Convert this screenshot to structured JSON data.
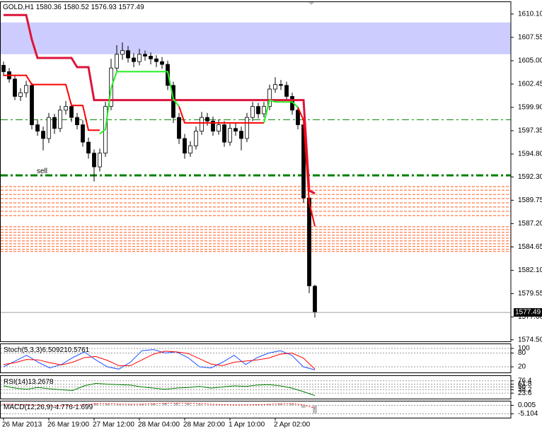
{
  "chart_data": [
    {
      "type": "candlestick",
      "title": "GOLD,H1",
      "categories": [
        "26 Mar 2013",
        null,
        null,
        null,
        null,
        null,
        null,
        null,
        "26 Mar 19:00",
        null,
        null,
        null,
        null,
        null,
        null,
        null,
        "27 Mar 12:00",
        null,
        null,
        null,
        null,
        null,
        null,
        null,
        "28 Mar 04:00",
        null,
        null,
        null,
        null,
        null,
        null,
        null,
        "28 Mar 20:00",
        null,
        null,
        null,
        null,
        null,
        null,
        null,
        "1 Apr 10:00",
        null,
        null,
        null,
        null,
        null,
        null,
        null,
        "2 Apr 02:00",
        null,
        null,
        null,
        null,
        null,
        null,
        null
      ],
      "open": [
        1604.5,
        1603.8,
        1603.0,
        1601.1,
        1601.5,
        1602.3,
        1598.0,
        1597.3,
        1596.5,
        1598.8,
        1597.6,
        1599.6,
        1600.0,
        1598.8,
        1598.0,
        1596.1,
        1594.9,
        1593.4,
        1594.9,
        1600.0,
        1604.2,
        1605.7,
        1606.1,
        1605.3,
        1604.9,
        1605.7,
        1605.5,
        1605.2,
        1604.9,
        1604.6,
        1602.3,
        1598.8,
        1596.5,
        1594.9,
        1595.7,
        1597.3,
        1598.8,
        1598.4,
        1597.3,
        1598.0,
        1596.1,
        1597.6,
        1597.3,
        1596.5,
        1598.8,
        1600.0,
        1599.2,
        1600.0,
        1601.9,
        1602.4,
        1602.3,
        1601.1,
        1599.6,
        1598.0,
        1590.0,
        1580.36
      ],
      "high": [
        1604.9,
        1604.2,
        1603.4,
        1602.0,
        1602.8,
        1602.6,
        1598.6,
        1597.8,
        1599.3,
        1599.2,
        1600.1,
        1600.6,
        1600.4,
        1599.3,
        1598.5,
        1596.6,
        1595.3,
        1595.4,
        1600.5,
        1605.2,
        1606.7,
        1607.0,
        1606.6,
        1605.8,
        1606.3,
        1606.1,
        1605.9,
        1605.6,
        1605.4,
        1605.0,
        1602.7,
        1599.3,
        1597.0,
        1596.2,
        1597.8,
        1599.4,
        1599.3,
        1598.9,
        1598.6,
        1598.4,
        1598.1,
        1598.2,
        1597.8,
        1599.3,
        1600.5,
        1600.4,
        1600.5,
        1602.4,
        1603.2,
        1602.9,
        1602.7,
        1601.5,
        1600.0,
        1598.3,
        1590.3,
        1580.52
      ],
      "low": [
        1603.3,
        1602.6,
        1600.7,
        1600.6,
        1601.0,
        1597.5,
        1596.8,
        1595.2,
        1596.0,
        1597.0,
        1597.2,
        1599.1,
        1598.3,
        1597.5,
        1595.6,
        1594.3,
        1591.8,
        1592.9,
        1594.5,
        1599.6,
        1603.8,
        1605.1,
        1604.8,
        1604.3,
        1604.5,
        1605.0,
        1604.6,
        1604.3,
        1604.1,
        1601.8,
        1598.2,
        1595.9,
        1594.3,
        1594.5,
        1595.3,
        1596.9,
        1597.9,
        1596.8,
        1596.9,
        1595.6,
        1595.7,
        1596.8,
        1595.2,
        1596.1,
        1598.4,
        1598.7,
        1598.8,
        1599.6,
        1601.5,
        1601.8,
        1600.6,
        1599.1,
        1597.5,
        1589.5,
        1579.6,
        1576.93
      ],
      "close": [
        1603.8,
        1603.0,
        1601.1,
        1601.5,
        1602.3,
        1598.0,
        1597.3,
        1596.5,
        1598.8,
        1597.6,
        1599.6,
        1600.0,
        1598.8,
        1598.0,
        1596.1,
        1594.9,
        1593.4,
        1594.9,
        1600.0,
        1604.2,
        1605.7,
        1606.1,
        1605.3,
        1604.9,
        1605.7,
        1605.5,
        1605.2,
        1604.9,
        1604.6,
        1602.3,
        1598.8,
        1596.5,
        1594.9,
        1595.7,
        1597.3,
        1598.8,
        1598.4,
        1597.3,
        1598.0,
        1596.1,
        1597.6,
        1597.3,
        1596.5,
        1598.8,
        1600.0,
        1599.2,
        1600.0,
        1601.9,
        1602.4,
        1602.3,
        1601.1,
        1599.6,
        1598.0,
        1590.0,
        1580.4,
        1577.49
      ],
      "up_color": "#ffffff",
      "down_color": "#000000",
      "series": [
        {
          "color": "#dc143c",
          "width": 3,
          "values": [
            1610.0,
            1610.0,
            1610.0,
            1610.0,
            1610.0,
            1607.3,
            1605.3,
            1605.3,
            1605.3,
            1605.3,
            1605.3,
            1605.3,
            1605.3,
            1604.3,
            1604.3,
            1604.3,
            1600.7,
            1600.7,
            1600.7,
            1600.7,
            1600.7,
            1600.7,
            1600.7,
            1600.7,
            1600.7,
            1600.7,
            1600.7,
            1600.7,
            1600.7,
            1600.7,
            1600.7,
            1600.7,
            1600.7,
            1600.7,
            1600.7,
            1600.7,
            1600.7,
            1600.7,
            1600.7,
            1600.7,
            1600.7,
            1600.7,
            1600.7,
            1600.7,
            1600.7,
            1600.7,
            1600.7,
            1600.7,
            1600.7,
            1600.7,
            1600.7,
            1600.7,
            1600.7,
            1600.7,
            1590.8,
            1590.5
          ]
        },
        {
          "color": "#ff0000",
          "width": 2,
          "values": [
            1603.4,
            1603.4,
            1603.4,
            1603.4,
            1603.4,
            1602.4,
            1602.4,
            1602.4,
            1602.4,
            1602.4,
            1602.4,
            1602.4,
            1600.1,
            1600.1,
            1600.1,
            1597.4,
            1597.4,
            1597.4,
            null,
            null,
            null,
            null,
            null,
            null,
            null,
            null,
            null,
            null,
            null,
            null,
            null,
            1600.0,
            1598.2,
            1598.2,
            1598.2,
            1598.2,
            1598.2,
            1598.2,
            1598.2,
            1598.2,
            1598.2,
            1598.2,
            1598.2,
            1598.2,
            1598.2,
            1598.2,
            1598.2,
            null,
            null,
            null,
            null,
            null,
            1599.9,
            1598.5,
            1589.5,
            1586.9
          ]
        },
        {
          "color": "#22ee22",
          "width": 2,
          "values": [
            null,
            null,
            null,
            null,
            null,
            null,
            null,
            null,
            null,
            null,
            null,
            null,
            null,
            null,
            null,
            null,
            null,
            1597.0,
            1597.5,
            1602.0,
            1603.8,
            1603.8,
            1603.8,
            1603.8,
            1603.8,
            1603.8,
            1603.8,
            1603.8,
            1603.8,
            1603.8,
            1600.8,
            1600.0,
            null,
            null,
            null,
            null,
            null,
            null,
            null,
            null,
            null,
            null,
            null,
            null,
            null,
            null,
            1598.2,
            1600.7,
            1600.5,
            1600.5,
            1600.5,
            1600.5,
            1599.9,
            null,
            null,
            null
          ]
        }
      ],
      "hlines": [
        {
          "value": 1598.55,
          "width": 1
        },
        {
          "value": 1592.47,
          "width": 3,
          "label": "sell"
        }
      ],
      "hlines_color": "#008000",
      "levels": [
        1591.24,
        1590.85,
        1590.39,
        1589.93,
        1589.47,
        1589.01,
        1588.54,
        1588.08,
        1586.85,
        1586.54,
        1586.24,
        1585.93,
        1585.62,
        1585.31,
        1585.0,
        1584.7,
        1584.39,
        1584.16
      ],
      "levels_color": "#ff5a1e",
      "zone": [
        1605.71,
        1609.18
      ],
      "zone_color": "#ccccff",
      "ylim": [
        1574.33,
        1611.48
      ],
      "yticks": [
        {
          "value": 1610.1,
          "label": "1610.10"
        },
        1607.55,
        {
          "value": 1605,
          "label": "1605.00"
        },
        1602.45,
        {
          "value": 1599.9,
          "label": "1599.90"
        },
        1597.35,
        {
          "value": 1594.8,
          "label": "1594.80"
        },
        {
          "value": 1592.3,
          "label": "1592.30"
        },
        1589.75,
        {
          "value": 1587.2,
          "label": "1587.20"
        },
        1584.65,
        {
          "value": 1582.1,
          "label": "1582.10"
        },
        1579.55,
        {
          "value": 1577,
          "label": "1577.00"
        },
        {
          "value": 1574.5,
          "label": "1574.50"
        }
      ]
    },
    {
      "type": "line",
      "title": "Stoch(5,3,3)",
      "series": [
        {
          "color": "#1e50ff",
          "values": [
            20,
            45,
            70,
            40,
            15,
            30,
            60,
            85,
            50,
            20,
            10,
            40,
            90,
            95,
            80,
            85,
            60,
            20,
            15,
            40,
            70,
            30,
            60,
            80,
            90,
            70,
            20,
            6.5092
          ]
        },
        {
          "color": "#ff0000",
          "values": [
            30,
            38,
            52,
            50,
            38,
            28,
            40,
            60,
            65,
            48,
            25,
            25,
            50,
            75,
            88,
            85,
            78,
            55,
            32,
            25,
            40,
            45,
            50,
            58,
            75,
            80,
            58,
            10.5761
          ]
        }
      ],
      "ylim": [
        -4.6,
        121.5
      ],
      "yticks": [
        100,
        80,
        20
      ]
    },
    {
      "type": "line",
      "title": "RSI(14)",
      "series": [
        {
          "color": "#008000",
          "values": [
            55,
            45,
            40,
            48,
            42,
            38,
            35,
            55,
            65,
            62,
            60,
            58,
            50,
            45,
            40,
            45,
            48,
            52,
            45,
            50,
            55,
            52,
            58,
            60,
            55,
            45,
            30,
            13.2678
          ]
        }
      ],
      "ylim": [
        0,
        100
      ],
      "yticks": [
        76.4,
        61.8,
        50,
        38.2,
        23.6
      ]
    },
    {
      "type": "bar",
      "title": "MACD(12,26,9)",
      "values": [
        0.8,
        0.5,
        0.2,
        -0.2,
        -0.5,
        -0.4,
        0.2,
        0.9,
        1.3,
        1.0,
        0.6,
        0.5,
        0.8,
        1.2,
        1.5,
        1.5,
        1.3,
        0.8,
        0.3,
        0.1,
        0.2,
        0.3,
        0.5,
        0.8,
        1.1,
        1.0,
        -1.5,
        -4.776
      ],
      "color": "#c0c0c0",
      "series": [
        {
          "color": "#ff0000",
          "values": [
            0.7,
            0.6,
            0.4,
            0.2,
            -0.1,
            -0.3,
            -0.1,
            0.4,
            0.9,
            1.0,
            0.8,
            0.6,
            0.7,
            1.0,
            1.3,
            1.4,
            1.4,
            1.1,
            0.7,
            0.4,
            0.3,
            0.3,
            0.4,
            0.6,
            0.9,
            1.0,
            0.3,
            -1.699
          ]
        }
      ],
      "ylim": [
        -7.42,
        2.78
      ],
      "yticks": [
        0.005,
        -5.104
      ]
    }
  ]
}
